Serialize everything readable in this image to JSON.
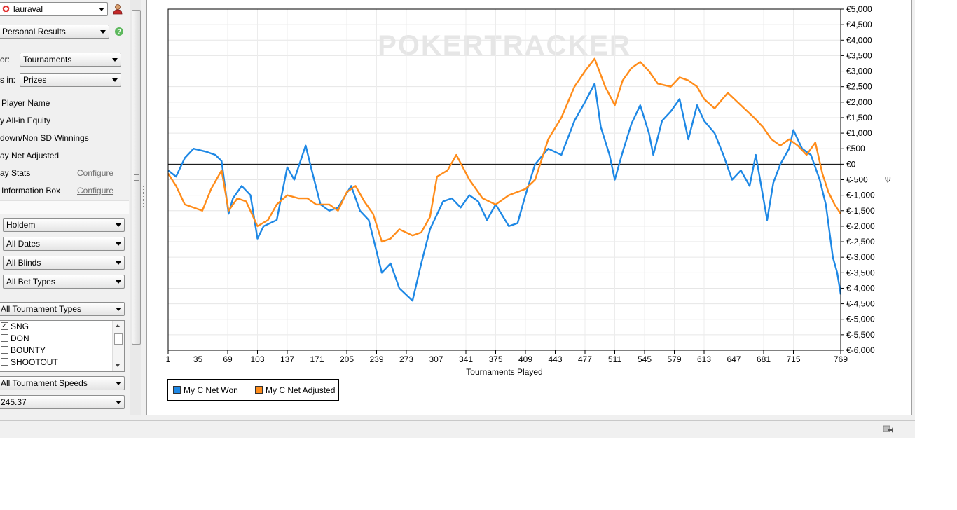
{
  "user": {
    "name": "lauraval"
  },
  "view": {
    "selected": "Personal Results"
  },
  "options": {
    "for_label": "or:",
    "for_value": "Tournaments",
    "show_label": "s in:",
    "show_value": "Prizes",
    "player_name": "Player Name",
    "allin_equity": "y All-in Equity",
    "sd_winnings": "down/Non SD Winnings",
    "net_adjusted": "ay Net Adjusted",
    "stats": "ay Stats",
    "stats_link": "Configure",
    "info_box": "Information Box",
    "info_box_link": "Configure"
  },
  "filters": {
    "game": "Holdem",
    "dates": "All Dates",
    "blinds": "All Blinds",
    "bet_types": "All Bet Types",
    "tournament_types": "All Tournament Types",
    "tournament_type_options": [
      {
        "label": "SNG",
        "checked": true
      },
      {
        "label": "DON",
        "checked": false
      },
      {
        "label": "BOUNTY",
        "checked": false
      },
      {
        "label": "SHOOTOUT",
        "checked": false
      }
    ],
    "speeds": "All Tournament Speeds",
    "buyin": "245.37"
  },
  "chart_data": {
    "type": "line",
    "watermark": "POKERTRACKER",
    "xlabel": "Tournaments Played",
    "ylabel": "",
    "xlim": [
      1,
      769
    ],
    "ylim": [
      -6000,
      5000
    ],
    "x_ticks": [
      "1",
      "35",
      "69",
      "103",
      "137",
      "171",
      "205",
      "239",
      "273",
      "307",
      "341",
      "375",
      "409",
      "443",
      "477",
      "511",
      "545",
      "579",
      "613",
      "647",
      "681",
      "715",
      "769"
    ],
    "y_ticks": [
      "€5,000",
      "€4,500",
      "€4,000",
      "€3,500",
      "€3,000",
      "€2,500",
      "€2,000",
      "€1,500",
      "€1,000",
      "€500",
      "€0",
      "€-500",
      "€-1,000",
      "€-1,500",
      "€-2,000",
      "€-2,500",
      "€-3,000",
      "€-3,500",
      "€-4,000",
      "€-4,500",
      "€-5,000",
      "€-5,500",
      "€-6,000"
    ],
    "axis_side_glyph": "Ψ",
    "grid": true,
    "legend_position": "bottom-left",
    "series": [
      {
        "name": "My C Net Won",
        "color": "#1e88e5",
        "points": [
          [
            1,
            -200
          ],
          [
            10,
            -400
          ],
          [
            20,
            200
          ],
          [
            30,
            500
          ],
          [
            45,
            400
          ],
          [
            55,
            300
          ],
          [
            62,
            100
          ],
          [
            70,
            -1600
          ],
          [
            75,
            -1100
          ],
          [
            85,
            -700
          ],
          [
            95,
            -1000
          ],
          [
            103,
            -2400
          ],
          [
            110,
            -2000
          ],
          [
            125,
            -1800
          ],
          [
            137,
            -100
          ],
          [
            145,
            -500
          ],
          [
            158,
            600
          ],
          [
            165,
            -200
          ],
          [
            175,
            -1300
          ],
          [
            185,
            -1500
          ],
          [
            195,
            -1400
          ],
          [
            210,
            -700
          ],
          [
            220,
            -1500
          ],
          [
            230,
            -1800
          ],
          [
            245,
            -3500
          ],
          [
            255,
            -3200
          ],
          [
            265,
            -4000
          ],
          [
            280,
            -4400
          ],
          [
            290,
            -3200
          ],
          [
            300,
            -2100
          ],
          [
            315,
            -1200
          ],
          [
            325,
            -1100
          ],
          [
            335,
            -1400
          ],
          [
            345,
            -1000
          ],
          [
            355,
            -1200
          ],
          [
            365,
            -1800
          ],
          [
            375,
            -1300
          ],
          [
            390,
            -2000
          ],
          [
            400,
            -1900
          ],
          [
            409,
            -1000
          ],
          [
            420,
            0
          ],
          [
            435,
            500
          ],
          [
            450,
            300
          ],
          [
            465,
            1400
          ],
          [
            477,
            2000
          ],
          [
            488,
            2600
          ],
          [
            495,
            1200
          ],
          [
            505,
            300
          ],
          [
            511,
            -500
          ],
          [
            520,
            400
          ],
          [
            530,
            1300
          ],
          [
            540,
            1900
          ],
          [
            550,
            1000
          ],
          [
            555,
            300
          ],
          [
            565,
            1400
          ],
          [
            575,
            1700
          ],
          [
            585,
            2100
          ],
          [
            595,
            800
          ],
          [
            605,
            1900
          ],
          [
            613,
            1400
          ],
          [
            625,
            1000
          ],
          [
            635,
            300
          ],
          [
            645,
            -500
          ],
          [
            655,
            -200
          ],
          [
            665,
            -700
          ],
          [
            672,
            300
          ],
          [
            685,
            -1800
          ],
          [
            692,
            -600
          ],
          [
            700,
            0
          ],
          [
            710,
            500
          ],
          [
            715,
            1100
          ],
          [
            725,
            500
          ],
          [
            735,
            300
          ],
          [
            745,
            -500
          ],
          [
            752,
            -1300
          ],
          [
            760,
            -3000
          ],
          [
            765,
            -3500
          ],
          [
            769,
            -4200
          ]
        ]
      },
      {
        "name": "My C Net Adjusted",
        "color": "#ff8c1a",
        "points": [
          [
            1,
            -300
          ],
          [
            10,
            -700
          ],
          [
            20,
            -1300
          ],
          [
            30,
            -1400
          ],
          [
            40,
            -1500
          ],
          [
            50,
            -800
          ],
          [
            62,
            -200
          ],
          [
            70,
            -1500
          ],
          [
            80,
            -1100
          ],
          [
            90,
            -1200
          ],
          [
            103,
            -2000
          ],
          [
            115,
            -1800
          ],
          [
            125,
            -1300
          ],
          [
            137,
            -1000
          ],
          [
            150,
            -1100
          ],
          [
            160,
            -1100
          ],
          [
            170,
            -1300
          ],
          [
            185,
            -1300
          ],
          [
            195,
            -1500
          ],
          [
            205,
            -900
          ],
          [
            215,
            -700
          ],
          [
            225,
            -1200
          ],
          [
            235,
            -1600
          ],
          [
            245,
            -2500
          ],
          [
            255,
            -2400
          ],
          [
            265,
            -2100
          ],
          [
            280,
            -2300
          ],
          [
            290,
            -2200
          ],
          [
            300,
            -1700
          ],
          [
            308,
            -400
          ],
          [
            320,
            -200
          ],
          [
            330,
            300
          ],
          [
            345,
            -500
          ],
          [
            360,
            -1100
          ],
          [
            375,
            -1300
          ],
          [
            390,
            -1000
          ],
          [
            409,
            -800
          ],
          [
            420,
            -500
          ],
          [
            435,
            800
          ],
          [
            450,
            1500
          ],
          [
            465,
            2500
          ],
          [
            477,
            3000
          ],
          [
            488,
            3400
          ],
          [
            500,
            2500
          ],
          [
            511,
            1900
          ],
          [
            520,
            2700
          ],
          [
            530,
            3100
          ],
          [
            540,
            3300
          ],
          [
            550,
            3000
          ],
          [
            560,
            2600
          ],
          [
            575,
            2500
          ],
          [
            585,
            2800
          ],
          [
            595,
            2700
          ],
          [
            605,
            2500
          ],
          [
            613,
            2100
          ],
          [
            625,
            1800
          ],
          [
            640,
            2300
          ],
          [
            655,
            1900
          ],
          [
            670,
            1500
          ],
          [
            680,
            1200
          ],
          [
            690,
            800
          ],
          [
            700,
            600
          ],
          [
            710,
            800
          ],
          [
            720,
            600
          ],
          [
            730,
            300
          ],
          [
            740,
            700
          ],
          [
            748,
            -300
          ],
          [
            755,
            -900
          ],
          [
            762,
            -1300
          ],
          [
            769,
            -1600
          ]
        ]
      }
    ]
  }
}
